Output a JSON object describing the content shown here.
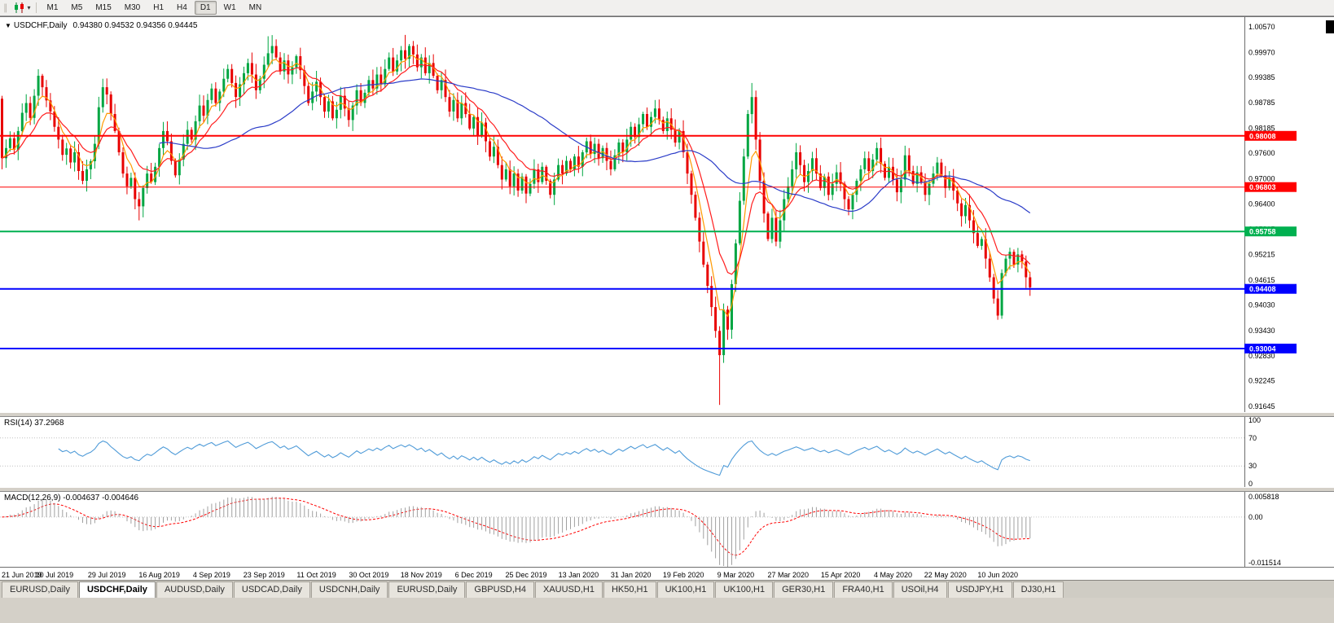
{
  "toolbar": {
    "handle_icon": "∥",
    "caret_icon": "▾",
    "periods": [
      "M1",
      "M5",
      "M15",
      "M30",
      "H1",
      "H4",
      "D1",
      "W1",
      "MN"
    ],
    "active_period": "D1"
  },
  "chart": {
    "title": {
      "caret": "▼",
      "symbol": "USDCHF,Daily",
      "ohlc": "0.94380 0.94532 0.94356 0.94445"
    },
    "colors": {
      "up": "#00a642",
      "down": "#e80000",
      "background": "#ffffff",
      "axis_text": "#000000",
      "histogram": "#a0a0a0",
      "signal": "#ff0000"
    }
  },
  "rsi": {
    "label": "RSI(14) 37.2968",
    "period": 14,
    "current": "37.2968",
    "axis_labels": [
      "100",
      "70",
      "30",
      "0"
    ],
    "levels": [
      70,
      30
    ],
    "color": "#4f9bd8"
  },
  "macd": {
    "label": "MACD(12,26,9) -0.004637 -0.004646",
    "current_macd": "-0.004637",
    "current_signal": "-0.004646"
  },
  "tabs": {
    "items": [
      "EURUSD,Daily",
      "USDCHF,Daily",
      "AUDUSD,Daily",
      "USDCAD,Daily",
      "USDCNH,Daily",
      "EURUSD,Daily",
      "GBPUSD,H4",
      "XAUUSD,H1",
      "HK50,H1",
      "UK100,H1",
      "UK100,H1",
      "GER30,H1",
      "FRA40,H1",
      "USOil,H4",
      "USDJPY,H1",
      "DJ30,H1"
    ],
    "active_index": 1
  },
  "chart_data": {
    "type": "candlestick",
    "symbol": "USDCHF",
    "timeframe": "Daily",
    "ylim": [
      0.91645,
      1.0057
    ],
    "y_axis_labels": [
      "1.00570",
      "0.99970",
      "0.99385",
      "0.98785",
      "0.98185",
      "0.97600",
      "0.97000",
      "0.96400",
      "0.95815",
      "0.95215",
      "0.94615",
      "0.94030",
      "0.93430",
      "0.92830",
      "0.92245",
      "0.91645"
    ],
    "x_labels": [
      "21 Jun 2019",
      "10 Jul 2019",
      "29 Jul 2019",
      "16 Aug 2019",
      "4 Sep 2019",
      "23 Sep 2019",
      "11 Oct 2019",
      "30 Oct 2019",
      "18 Nov 2019",
      "6 Dec 2019",
      "25 Dec 2019",
      "13 Jan 2020",
      "31 Jan 2020",
      "19 Feb 2020",
      "9 Mar 2020",
      "27 Mar 2020",
      "15 Apr 2020",
      "4 May 2020",
      "22 May 2020",
      "10 Jun 2020"
    ],
    "x_label_interval": 13,
    "first_open": 0.9888,
    "closes": [
      0.9748,
      0.9772,
      0.9795,
      0.9768,
      0.9812,
      0.9855,
      0.9878,
      0.9843,
      0.9895,
      0.9942,
      0.9915,
      0.9884,
      0.9858,
      0.9822,
      0.9792,
      0.9756,
      0.9771,
      0.9738,
      0.9762,
      0.9718,
      0.9695,
      0.9722,
      0.9741,
      0.9782,
      0.9868,
      0.9915,
      0.9898,
      0.9852,
      0.9812,
      0.9762,
      0.9712,
      0.9682,
      0.9702,
      0.9652,
      0.9635,
      0.9678,
      0.9712,
      0.9692,
      0.9728,
      0.9772,
      0.9812,
      0.9788,
      0.9742,
      0.9708,
      0.9745,
      0.9782,
      0.9815,
      0.9792,
      0.9835,
      0.9872,
      0.9848,
      0.9885,
      0.9912,
      0.9878,
      0.9905,
      0.9935,
      0.9958,
      0.9925,
      0.9892,
      0.9922,
      0.9948,
      0.9972,
      0.9945,
      0.9908,
      0.9935,
      0.9968,
      0.9995,
      1.0012,
      0.9985,
      0.9952,
      0.9978,
      0.9945,
      0.9962,
      0.9988,
      0.9955,
      0.9918,
      0.9878,
      0.9905,
      0.9928,
      0.9892,
      0.9858,
      0.9882,
      0.9842,
      0.9862,
      0.9895,
      0.9865,
      0.9838,
      0.9872,
      0.9908,
      0.9878,
      0.9902,
      0.9932,
      0.9912,
      0.9945,
      0.9922,
      0.9958,
      0.9985,
      0.9952,
      0.9978,
      1.0002,
      0.9982,
      1.0012,
      0.9992,
      0.9962,
      0.9985,
      0.9948,
      0.9972,
      0.9942,
      0.9908,
      0.9932,
      0.9892,
      0.9858,
      0.9885,
      0.9842,
      0.9878,
      0.9852,
      0.9818,
      0.9845,
      0.9802,
      0.9832,
      0.9788,
      0.9752,
      0.9775,
      0.9732,
      0.9698,
      0.9722,
      0.9682,
      0.9712,
      0.9672,
      0.9705,
      0.9665,
      0.9688,
      0.9722,
      0.9692,
      0.9728,
      0.9695,
      0.9662,
      0.9698,
      0.9732,
      0.9712,
      0.9742,
      0.9722,
      0.9752,
      0.9728,
      0.9762,
      0.9788,
      0.9758,
      0.9782,
      0.9748,
      0.9772,
      0.9742,
      0.9722,
      0.9755,
      0.9785,
      0.9762,
      0.9792,
      0.9822,
      0.9798,
      0.9828,
      0.9852,
      0.9822,
      0.9845,
      0.9865,
      0.9838,
      0.9812,
      0.9842,
      0.9815,
      0.9785,
      0.9812,
      0.9762,
      0.9712,
      0.9662,
      0.9608,
      0.9552,
      0.9498,
      0.9448,
      0.9398,
      0.9342,
      0.9285,
      0.9392,
      0.9345,
      0.9452,
      0.9548,
      0.9648,
      0.9752,
      0.9852,
      0.9892,
      0.9792,
      0.9695,
      0.9618,
      0.9558,
      0.9608,
      0.9552,
      0.9602,
      0.9652,
      0.9682,
      0.9722,
      0.9762,
      0.9732,
      0.9692,
      0.9718,
      0.9748,
      0.9712,
      0.9678,
      0.9705,
      0.9662,
      0.9688,
      0.9715,
      0.9688,
      0.9652,
      0.9628,
      0.9662,
      0.9695,
      0.9722,
      0.9748,
      0.9718,
      0.9745,
      0.9772,
      0.9735,
      0.9702,
      0.9728,
      0.9698,
      0.9668,
      0.9698,
      0.9755,
      0.9718,
      0.9688,
      0.9715,
      0.9692,
      0.9662,
      0.9688,
      0.9712,
      0.9738,
      0.9708,
      0.9678,
      0.9702,
      0.9672,
      0.9642,
      0.9612,
      0.9638,
      0.9602,
      0.9572,
      0.9542,
      0.9558,
      0.9512,
      0.9468,
      0.9418,
      0.9378,
      0.9478,
      0.9512,
      0.9528,
      0.9498,
      0.9522,
      0.9505,
      0.9468,
      0.94445
    ],
    "wick_overrides": {
      "0": {
        "high": 0.9895,
        "low": 0.9722
      },
      "25": {
        "high": 0.9935
      },
      "34": {
        "low": 0.9602
      },
      "66": {
        "high": 1.0035
      },
      "100": {
        "high": 1.0038
      },
      "162": {
        "high": 0.9885
      },
      "178": {
        "low": 0.9168
      },
      "186": {
        "high": 0.9925
      },
      "247": {
        "low": 0.9368
      }
    },
    "moving_averages": [
      {
        "name": "fast-ma",
        "period": 5,
        "method": "ema",
        "color": "#ff9a00"
      },
      {
        "name": "mid-ma",
        "period": 12,
        "method": "ema",
        "color": "#ff1e1e"
      },
      {
        "name": "slow-ma",
        "period": 40,
        "method": "sma",
        "color": "#2b3cc8"
      }
    ],
    "horizontal_lines": [
      {
        "price": 0.98008,
        "label": "0.98008",
        "color": "#ff0000",
        "width": 2
      },
      {
        "price": 0.96803,
        "label": "0.96803",
        "color": "#ff0000",
        "width": 1
      },
      {
        "price": 0.95758,
        "label": "0.95758",
        "color": "#00b050",
        "width": 2
      },
      {
        "price": 0.94408,
        "label": "0.94408",
        "color": "#0000ff",
        "width": 2
      },
      {
        "price": 0.93004,
        "label": "0.93004",
        "color": "#0000ff",
        "width": 2
      }
    ],
    "macd": {
      "fast": 12,
      "slow": 26,
      "signal": 9,
      "scale_max": 0.005818,
      "scale_min": -0.011514,
      "scale_labels": [
        "0.005818",
        "0.00",
        "-0.011514"
      ]
    }
  }
}
